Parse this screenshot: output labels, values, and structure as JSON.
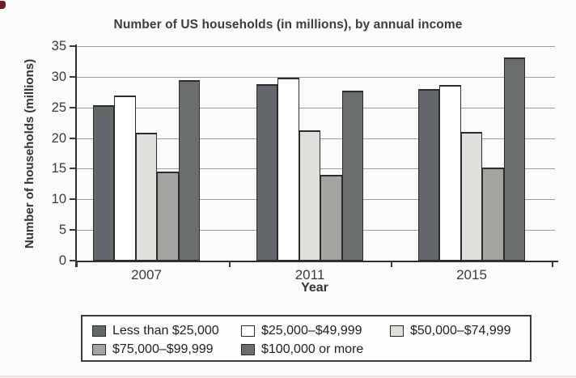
{
  "chart_data": {
    "type": "bar",
    "title": "Number of US households (in millions), by annual income",
    "xlabel": "Year",
    "ylabel": "Number of households (millions)",
    "categories": [
      "2007",
      "2011",
      "2015"
    ],
    "series": [
      {
        "name": "Less than $25,000",
        "color": "#63696b",
        "values": [
          25.3,
          28.8,
          28.0
        ]
      },
      {
        "name": "$25,000–$49,999",
        "color": "#ffffff",
        "values": [
          27.0,
          29.8,
          28.7
        ]
      },
      {
        "name": "$50,000–$74,999",
        "color": "#dfe0db",
        "values": [
          20.9,
          21.2,
          21.0
        ]
      },
      {
        "name": "$75,000–$99,999",
        "color": "#a1a49f",
        "values": [
          14.5,
          14.0,
          15.2
        ]
      },
      {
        "name": "$100,000 or more",
        "color": "#686e6c",
        "values": [
          29.5,
          27.8,
          33.2
        ]
      }
    ],
    "ylim": [
      0,
      35
    ],
    "yticks": [
      0,
      5,
      10,
      15,
      20,
      25,
      30,
      35
    ],
    "grid": "horizontal",
    "legend_position": "bottom",
    "legend_rows": [
      3,
      2
    ]
  },
  "colors": {
    "axis": "#2f2f2f",
    "gridline": "#9b9b9b",
    "title_text": "#3c3c3c",
    "scan_artifact": "#6f1d22"
  }
}
